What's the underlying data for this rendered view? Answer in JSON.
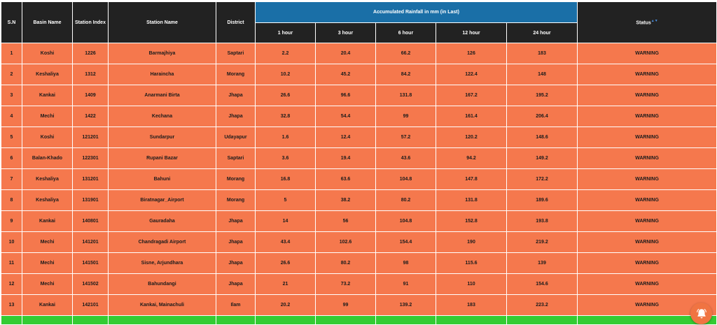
{
  "table": {
    "headers": {
      "sn": "S.N",
      "basin": "Basin Name",
      "index": "Station Index",
      "station": "Station Name",
      "district": "District",
      "group": "Accumulated Rainfall in mm (in Last)",
      "h1": "1 hour",
      "h3": "3 hour",
      "h6": "6 hour",
      "h12": "12 hour",
      "h24": "24 hour",
      "status": "Status",
      "status_sort_mark": "▲▼"
    },
    "rows": [
      {
        "sn": "1",
        "basin": "Koshi",
        "index": "1226",
        "station": "Barmajhiya",
        "district": "Saptari",
        "h1": "2.2",
        "h3": "20.4",
        "h6": "66.2",
        "h12": "126",
        "h24": "183",
        "status": "WARNING"
      },
      {
        "sn": "2",
        "basin": "Keshaliya",
        "index": "1312",
        "station": "Haraincha",
        "district": "Morang",
        "h1": "10.2",
        "h3": "45.2",
        "h6": "84.2",
        "h12": "122.4",
        "h24": "148",
        "status": "WARNING"
      },
      {
        "sn": "3",
        "basin": "Kankai",
        "index": "1409",
        "station": "Anarmani Birta",
        "district": "Jhapa",
        "h1": "26.6",
        "h3": "96.6",
        "h6": "131.8",
        "h12": "167.2",
        "h24": "195.2",
        "status": "WARNING"
      },
      {
        "sn": "4",
        "basin": "Mechi",
        "index": "1422",
        "station": "Kechana",
        "district": "Jhapa",
        "h1": "32.8",
        "h3": "54.4",
        "h6": "99",
        "h12": "161.4",
        "h24": "206.4",
        "status": "WARNING"
      },
      {
        "sn": "5",
        "basin": "Koshi",
        "index": "121201",
        "station": "Sundarpur",
        "district": "Udayapur",
        "h1": "1.6",
        "h3": "12.4",
        "h6": "57.2",
        "h12": "120.2",
        "h24": "148.6",
        "status": "WARNING"
      },
      {
        "sn": "6",
        "basin": "Balan-Khado",
        "index": "122301",
        "station": "Rupani Bazar",
        "district": "Saptari",
        "h1": "3.6",
        "h3": "19.4",
        "h6": "43.6",
        "h12": "94.2",
        "h24": "149.2",
        "status": "WARNING"
      },
      {
        "sn": "7",
        "basin": "Keshaliya",
        "index": "131201",
        "station": "Bahuni",
        "district": "Morang",
        "h1": "16.8",
        "h3": "63.6",
        "h6": "104.8",
        "h12": "147.8",
        "h24": "172.2",
        "status": "WARNING"
      },
      {
        "sn": "8",
        "basin": "Keshaliya",
        "index": "131901",
        "station": "Biratnagar_Airport",
        "district": "Morang",
        "h1": "5",
        "h3": "38.2",
        "h6": "80.2",
        "h12": "131.8",
        "h24": "189.6",
        "status": "WARNING"
      },
      {
        "sn": "9",
        "basin": "Kankai",
        "index": "140801",
        "station": "Gauradaha",
        "district": "Jhapa",
        "h1": "14",
        "h3": "56",
        "h6": "104.8",
        "h12": "152.8",
        "h24": "193.8",
        "status": "WARNING"
      },
      {
        "sn": "10",
        "basin": "Mechi",
        "index": "141201",
        "station": "Chandragadi Airport",
        "district": "Jhapa",
        "h1": "43.4",
        "h3": "102.6",
        "h6": "154.4",
        "h12": "190",
        "h24": "219.2",
        "status": "WARNING"
      },
      {
        "sn": "11",
        "basin": "Mechi",
        "index": "141501",
        "station": "Sisne, Arjundhara",
        "district": "Jhapa",
        "h1": "26.6",
        "h3": "80.2",
        "h6": "98",
        "h12": "115.6",
        "h24": "139",
        "status": "WARNING"
      },
      {
        "sn": "12",
        "basin": "Mechi",
        "index": "141502",
        "station": "Bahundangi",
        "district": "Jhapa",
        "h1": "21",
        "h3": "73.2",
        "h6": "91",
        "h12": "110",
        "h24": "154.6",
        "status": "WARNING"
      },
      {
        "sn": "13",
        "basin": "Kankai",
        "index": "142101",
        "station": "Kankai, Mainachuli",
        "district": "Ilam",
        "h1": "20.2",
        "h3": "99",
        "h6": "139.2",
        "h12": "183",
        "h24": "223.2",
        "status": "WARNING"
      }
    ]
  },
  "colors": {
    "header_bg": "#222222",
    "group_header_bg": "#1a6fa7",
    "warning_row_bg": "#f5784d",
    "normal_row_bg": "#33cc33",
    "alarm_button_bg": "#f07442"
  },
  "floating": {
    "icon": "alarm-bell-icon"
  }
}
